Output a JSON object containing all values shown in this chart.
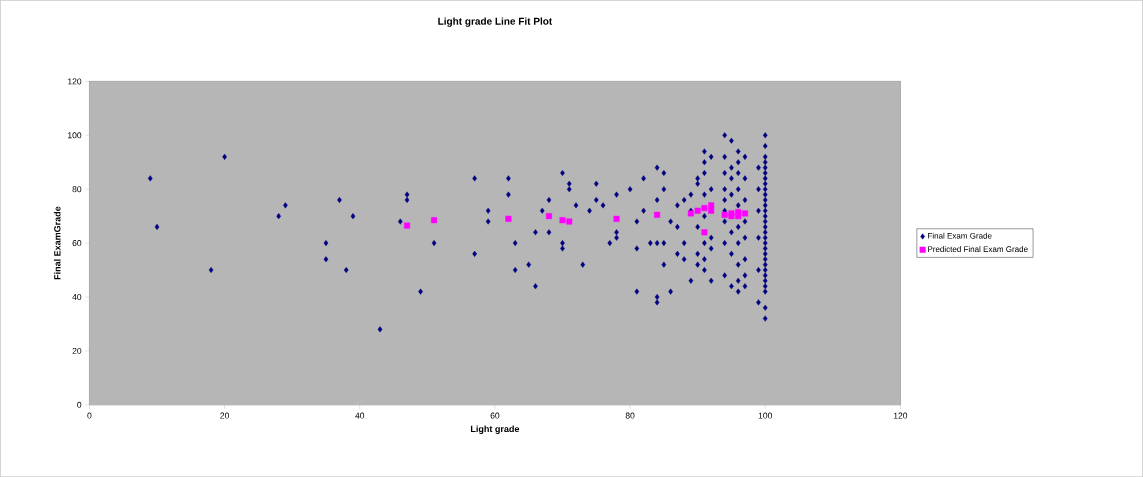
{
  "chart_data": {
    "type": "scatter",
    "title": "Light grade Line Fit  Plot",
    "xlabel": "Light grade",
    "ylabel": "Final ExamGrade",
    "xlim": [
      0,
      120
    ],
    "ylim": [
      0,
      120
    ],
    "xticks": [
      0,
      20,
      40,
      60,
      80,
      100,
      120
    ],
    "yticks": [
      0,
      20,
      40,
      60,
      80,
      100,
      120
    ],
    "grid": false,
    "legend": "right",
    "series": [
      {
        "name": "Final Exam Grade",
        "color": "#000080",
        "marker": "diamond",
        "x": [
          9,
          10,
          18,
          20,
          28,
          29,
          35,
          35,
          37,
          38,
          39,
          43,
          46,
          47,
          47,
          49,
          51,
          57,
          57,
          59,
          59,
          62,
          62,
          63,
          63,
          65,
          66,
          66,
          67,
          68,
          68,
          70,
          70,
          70,
          71,
          71,
          72,
          73,
          74,
          75,
          75,
          76,
          77,
          78,
          78,
          78,
          80,
          81,
          81,
          81,
          82,
          82,
          83,
          84,
          84,
          84,
          84,
          84,
          85,
          85,
          85,
          85,
          86,
          86,
          87,
          87,
          87,
          88,
          88,
          88,
          89,
          89,
          89,
          90,
          90,
          90,
          90,
          90,
          91,
          91,
          91,
          91,
          91,
          91,
          91,
          91,
          92,
          92,
          92,
          92,
          92,
          94,
          94,
          94,
          94,
          94,
          94,
          94,
          94,
          94,
          95,
          95,
          95,
          95,
          95,
          95,
          95,
          96,
          96,
          96,
          96,
          96,
          96,
          96,
          96,
          96,
          96,
          97,
          97,
          97,
          97,
          97,
          97,
          97,
          97,
          99,
          99,
          99,
          99,
          99,
          99,
          100,
          100,
          100,
          100,
          100,
          100,
          100,
          100,
          100,
          100,
          100,
          100,
          100,
          100,
          100,
          100,
          100,
          100,
          100,
          100,
          100,
          100,
          100,
          100,
          100,
          100,
          100,
          100,
          100,
          100
        ],
        "values": [
          84,
          66,
          50,
          92,
          70,
          74,
          60,
          54,
          76,
          50,
          70,
          28,
          68,
          78,
          76,
          42,
          60,
          84,
          56,
          72,
          68,
          84,
          78,
          60,
          50,
          52,
          64,
          44,
          72,
          76,
          64,
          86,
          60,
          58,
          82,
          80,
          74,
          52,
          72,
          82,
          76,
          74,
          60,
          78,
          64,
          62,
          80,
          68,
          58,
          42,
          84,
          72,
          60,
          88,
          76,
          60,
          40,
          38,
          86,
          80,
          60,
          52,
          68,
          42,
          74,
          66,
          56,
          76,
          60,
          54,
          46,
          72,
          78,
          66,
          56,
          82,
          84,
          52,
          94,
          90,
          86,
          78,
          70,
          60,
          54,
          50,
          92,
          80,
          62,
          46,
          58,
          100,
          92,
          86,
          80,
          76,
          72,
          68,
          60,
          48,
          98,
          88,
          84,
          78,
          64,
          56,
          44,
          94,
          90,
          86,
          80,
          74,
          66,
          60,
          52,
          46,
          42,
          92,
          84,
          76,
          68,
          62,
          54,
          48,
          44,
          88,
          80,
          72,
          62,
          50,
          38,
          100,
          96,
          92,
          90,
          88,
          86,
          84,
          82,
          80,
          78,
          76,
          74,
          72,
          70,
          68,
          66,
          64,
          62,
          60,
          58,
          56,
          54,
          52,
          50,
          48,
          46,
          44,
          42,
          36,
          32
        ]
      },
      {
        "name": "Predicted Final Exam Grade",
        "color": "#ff00ff",
        "marker": "square",
        "x": [
          47,
          51,
          62,
          68,
          70,
          71,
          78,
          84,
          89,
          90,
          91,
          91,
          92,
          92,
          94,
          95,
          96,
          95,
          96,
          97
        ],
        "values": [
          66.5,
          68.5,
          69,
          70,
          68.5,
          68,
          69,
          70.5,
          71,
          72,
          73,
          64,
          74,
          72,
          70.5,
          71,
          71.5,
          70,
          70,
          71
        ]
      }
    ]
  }
}
